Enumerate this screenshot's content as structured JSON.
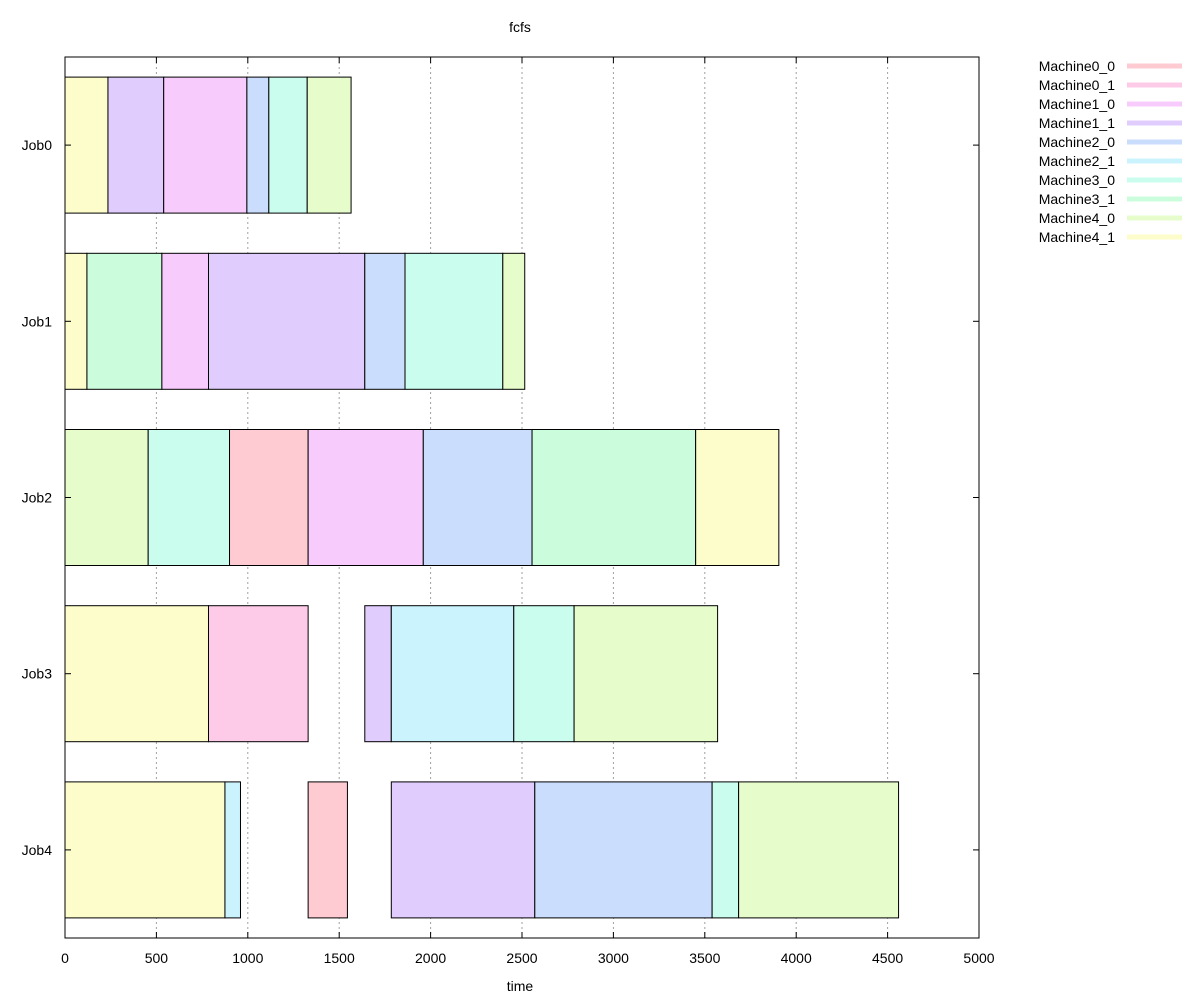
{
  "chart_data": {
    "type": "gantt",
    "title": "fcfs",
    "xlabel": "time",
    "ylabel": "",
    "xlim": [
      0,
      5000
    ],
    "xticks": [
      0,
      500,
      1000,
      1500,
      2000,
      2500,
      3000,
      3500,
      4000,
      4500,
      5000
    ],
    "grid": "vertical dashed",
    "legend_position": "top-right outside",
    "jobs": [
      "Job0",
      "Job1",
      "Job2",
      "Job3",
      "Job4"
    ],
    "machines": [
      {
        "name": "Machine0_0",
        "color": "#fecbd2"
      },
      {
        "name": "Machine0_1",
        "color": "#fdcbe8"
      },
      {
        "name": "Machine1_0",
        "color": "#f8cbfd"
      },
      {
        "name": "Machine1_1",
        "color": "#e0ccfd"
      },
      {
        "name": "Machine2_0",
        "color": "#cbddfd"
      },
      {
        "name": "Machine2_1",
        "color": "#cbf3fd"
      },
      {
        "name": "Machine3_0",
        "color": "#cbfdee"
      },
      {
        "name": "Machine3_1",
        "color": "#cbfddd"
      },
      {
        "name": "Machine4_0",
        "color": "#e6fdcb"
      },
      {
        "name": "Machine4_1",
        "color": "#fdfdcb"
      }
    ],
    "tasks": [
      {
        "job": "Job0",
        "machine": "Machine4_1",
        "start": 0,
        "end": 235
      },
      {
        "job": "Job0",
        "machine": "Machine1_1",
        "start": 235,
        "end": 540
      },
      {
        "job": "Job0",
        "machine": "Machine1_0",
        "start": 540,
        "end": 995
      },
      {
        "job": "Job0",
        "machine": "Machine2_0",
        "start": 995,
        "end": 1115
      },
      {
        "job": "Job0",
        "machine": "Machine3_0",
        "start": 1115,
        "end": 1325
      },
      {
        "job": "Job0",
        "machine": "Machine4_0",
        "start": 1325,
        "end": 1565
      },
      {
        "job": "Job1",
        "machine": "Machine4_1",
        "start": 0,
        "end": 120
      },
      {
        "job": "Job1",
        "machine": "Machine3_1",
        "start": 120,
        "end": 530
      },
      {
        "job": "Job1",
        "machine": "Machine1_0",
        "start": 530,
        "end": 785
      },
      {
        "job": "Job1",
        "machine": "Machine1_1",
        "start": 785,
        "end": 1640
      },
      {
        "job": "Job1",
        "machine": "Machine2_0",
        "start": 1640,
        "end": 1860
      },
      {
        "job": "Job1",
        "machine": "Machine3_0",
        "start": 1860,
        "end": 2395
      },
      {
        "job": "Job1",
        "machine": "Machine4_0",
        "start": 2395,
        "end": 2515
      },
      {
        "job": "Job2",
        "machine": "Machine4_0",
        "start": 0,
        "end": 455
      },
      {
        "job": "Job2",
        "machine": "Machine3_0",
        "start": 455,
        "end": 900
      },
      {
        "job": "Job2",
        "machine": "Machine0_0",
        "start": 900,
        "end": 1330
      },
      {
        "job": "Job2",
        "machine": "Machine1_0",
        "start": 1330,
        "end": 1960
      },
      {
        "job": "Job2",
        "machine": "Machine2_0",
        "start": 1960,
        "end": 2555
      },
      {
        "job": "Job2",
        "machine": "Machine3_1",
        "start": 2555,
        "end": 3450
      },
      {
        "job": "Job2",
        "machine": "Machine4_1",
        "start": 3450,
        "end": 3905
      },
      {
        "job": "Job3",
        "machine": "Machine4_1",
        "start": 0,
        "end": 785
      },
      {
        "job": "Job3",
        "machine": "Machine0_1",
        "start": 785,
        "end": 1330
      },
      {
        "job": "Job3",
        "machine": "Machine1_1",
        "start": 1640,
        "end": 1785
      },
      {
        "job": "Job3",
        "machine": "Machine2_1",
        "start": 1785,
        "end": 2455
      },
      {
        "job": "Job3",
        "machine": "Machine3_0",
        "start": 2455,
        "end": 2785
      },
      {
        "job": "Job3",
        "machine": "Machine4_0",
        "start": 2785,
        "end": 3570
      },
      {
        "job": "Job4",
        "machine": "Machine4_1",
        "start": 0,
        "end": 875
      },
      {
        "job": "Job4",
        "machine": "Machine2_1",
        "start": 875,
        "end": 960
      },
      {
        "job": "Job4",
        "machine": "Machine0_0",
        "start": 1330,
        "end": 1545
      },
      {
        "job": "Job4",
        "machine": "Machine1_1",
        "start": 1785,
        "end": 2570
      },
      {
        "job": "Job4",
        "machine": "Machine2_0",
        "start": 2570,
        "end": 3540
      },
      {
        "job": "Job4",
        "machine": "Machine3_0",
        "start": 3540,
        "end": 3685
      },
      {
        "job": "Job4",
        "machine": "Machine4_0",
        "start": 3685,
        "end": 4560
      }
    ]
  }
}
